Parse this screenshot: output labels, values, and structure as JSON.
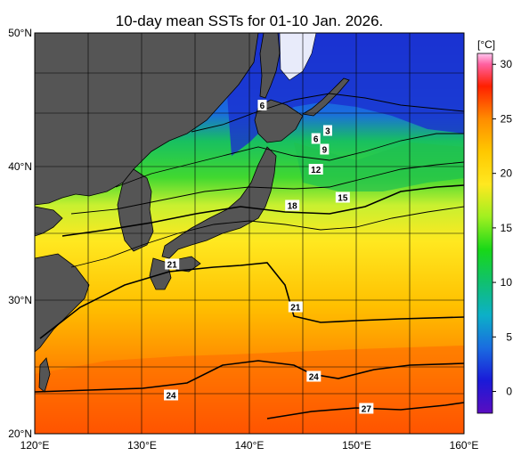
{
  "title": "10-day mean SSTs for 01-10 Jan. 2026.",
  "map": {
    "lon_range": [
      120,
      160
    ],
    "lat_range": [
      20,
      50
    ],
    "lat_ticks": [
      {
        "value": 50,
        "label": "50°N"
      },
      {
        "value": 40,
        "label": "40°N"
      },
      {
        "value": 30,
        "label": "30°N"
      },
      {
        "value": 20,
        "label": "20°N"
      }
    ],
    "lon_ticks": [
      {
        "value": 120,
        "label": "120°E"
      },
      {
        "value": 130,
        "label": "130°E"
      },
      {
        "value": 140,
        "label": "140°E"
      },
      {
        "value": 150,
        "label": "150°E"
      },
      {
        "value": 160,
        "label": "160°E"
      }
    ],
    "land_color": "#555555",
    "contour_labels": [
      {
        "text": "6",
        "lon": 141.2,
        "lat": 44.6
      },
      {
        "text": "3",
        "lon": 147.3,
        "lat": 42.7
      },
      {
        "text": "6",
        "lon": 146.2,
        "lat": 42.1
      },
      {
        "text": "9",
        "lon": 147.0,
        "lat": 41.3
      },
      {
        "text": "12",
        "lon": 146.2,
        "lat": 39.8
      },
      {
        "text": "15",
        "lon": 148.7,
        "lat": 37.7
      },
      {
        "text": "18",
        "lon": 144.0,
        "lat": 37.1
      },
      {
        "text": "21",
        "lon": 132.8,
        "lat": 32.7
      },
      {
        "text": "21",
        "lon": 144.3,
        "lat": 29.5
      },
      {
        "text": "24",
        "lon": 146.0,
        "lat": 24.3
      },
      {
        "text": "24",
        "lon": 132.7,
        "lat": 22.9
      },
      {
        "text": "27",
        "lon": 150.9,
        "lat": 21.9
      }
    ]
  },
  "colorbar": {
    "unit_label": "[°C]",
    "range": [
      -2,
      31
    ],
    "ticks": [
      {
        "value": 30,
        "label": "30"
      },
      {
        "value": 25,
        "label": "25"
      },
      {
        "value": 20,
        "label": "20"
      },
      {
        "value": 15,
        "label": "15"
      },
      {
        "value": 10,
        "label": "10"
      },
      {
        "value": 5,
        "label": "5"
      },
      {
        "value": 0,
        "label": "0"
      }
    ],
    "stops": [
      {
        "t": -2,
        "color": "#5a0dc0"
      },
      {
        "t": 1,
        "color": "#1a1ad8"
      },
      {
        "t": 4,
        "color": "#1a6ce0"
      },
      {
        "t": 7,
        "color": "#0cb0c8"
      },
      {
        "t": 10,
        "color": "#10c070"
      },
      {
        "t": 13,
        "color": "#18d818"
      },
      {
        "t": 16,
        "color": "#a0f020"
      },
      {
        "t": 19,
        "color": "#ffe820"
      },
      {
        "t": 22,
        "color": "#ffc800"
      },
      {
        "t": 25,
        "color": "#ff8c00"
      },
      {
        "t": 28,
        "color": "#ff2000"
      },
      {
        "t": 30,
        "color": "#ff60a0"
      },
      {
        "t": 31,
        "color": "#ffc8f0"
      }
    ]
  }
}
